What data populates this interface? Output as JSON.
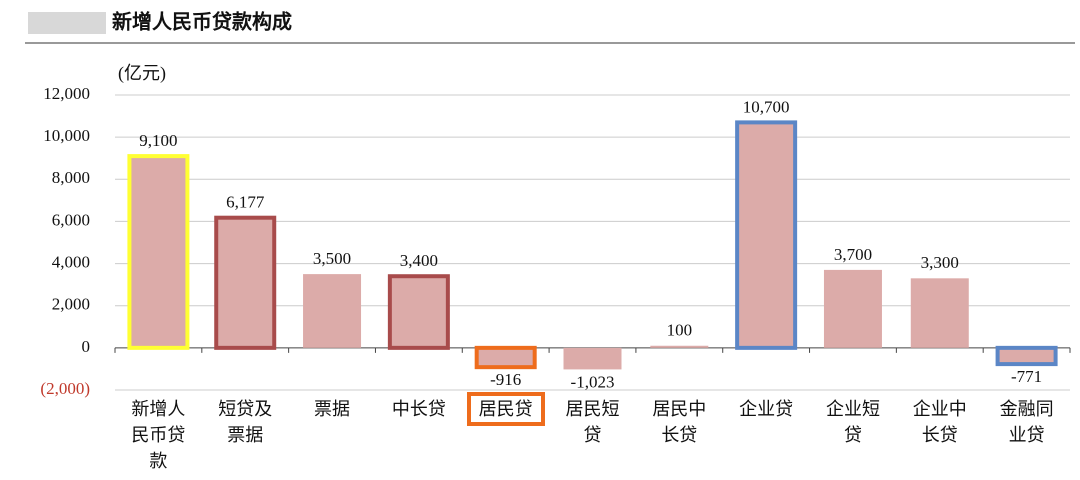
{
  "chart_data": {
    "type": "bar",
    "title": "新增人民币贷款构成",
    "unit_label": "(亿元)",
    "categories": [
      "新增人民币贷款",
      "短贷及票据",
      "票据",
      "中长贷",
      "居民贷",
      "居民短贷",
      "居民中长贷",
      "企业贷",
      "企业短贷",
      "企业中长贷",
      "金融同业贷"
    ],
    "values": [
      9100,
      6177,
      3500,
      3400,
      -916,
      -1023,
      100,
      10700,
      3700,
      3300,
      -771
    ],
    "value_labels": [
      "9,100",
      "6,177",
      "3,500",
      "3,400",
      "-916",
      "-1,023",
      "100",
      "10,700",
      "3,700",
      "3,300",
      "-771"
    ],
    "color": "#dcaba9",
    "outlines": [
      "#ffff33",
      "#a84b4b",
      null,
      "#a84b4b",
      "#ee6c1c",
      null,
      null,
      "#5b86c6",
      null,
      null,
      "#5b86c6"
    ],
    "label_outlines": [
      null,
      null,
      null,
      null,
      "#ee6c1c",
      null,
      null,
      null,
      null,
      null,
      null
    ],
    "ylim": [
      -2000,
      12000
    ],
    "yticks": [
      {
        "value": -2000,
        "label": "(2,000)"
      },
      0,
      {
        "value": 2000,
        "label": "2,000"
      },
      {
        "value": 4000,
        "label": "4,000"
      },
      {
        "value": 6000,
        "label": "6,000"
      },
      {
        "value": 8000,
        "label": "8,000"
      },
      {
        "value": 10000,
        "label": "10,000"
      },
      {
        "value": 12000,
        "label": "12,000"
      }
    ],
    "negative_tick_color": "#c0392b",
    "grid": true
  }
}
